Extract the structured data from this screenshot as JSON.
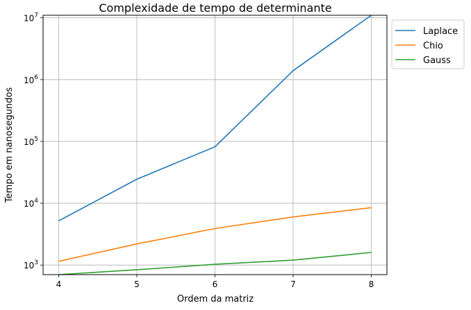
{
  "chart_data": {
    "type": "line",
    "title": "Complexidade de tempo de determinante",
    "xlabel": "Ordem da matriz",
    "ylabel": "Tempo em nanosegundos",
    "yscale": "log",
    "grid": true,
    "legend_position": "outside-top-right",
    "x": [
      4,
      5,
      6,
      7,
      8
    ],
    "xticks": [
      "4",
      "5",
      "6",
      "7",
      "8"
    ],
    "xlim": [
      3.8,
      8.2
    ],
    "ylim": [
      700,
      11000000
    ],
    "yticks": [
      {
        "value": 1000,
        "base": "10",
        "exp": "3"
      },
      {
        "value": 10000,
        "base": "10",
        "exp": "4"
      },
      {
        "value": 100000,
        "base": "10",
        "exp": "5"
      },
      {
        "value": 1000000,
        "base": "10",
        "exp": "6"
      },
      {
        "value": 10000000,
        "base": "10",
        "exp": "7"
      }
    ],
    "series": [
      {
        "name": "Laplace",
        "color": "#1f77b4",
        "values": [
          5200,
          24500,
          82000,
          1400000,
          11000000
        ]
      },
      {
        "name": "Chio",
        "color": "#ff7f0e",
        "values": [
          1150,
          2200,
          3900,
          6000,
          8500
        ]
      },
      {
        "name": "Gauss",
        "color": "#2ca02c",
        "values": [
          700,
          840,
          1030,
          1200,
          1600
        ]
      }
    ]
  }
}
